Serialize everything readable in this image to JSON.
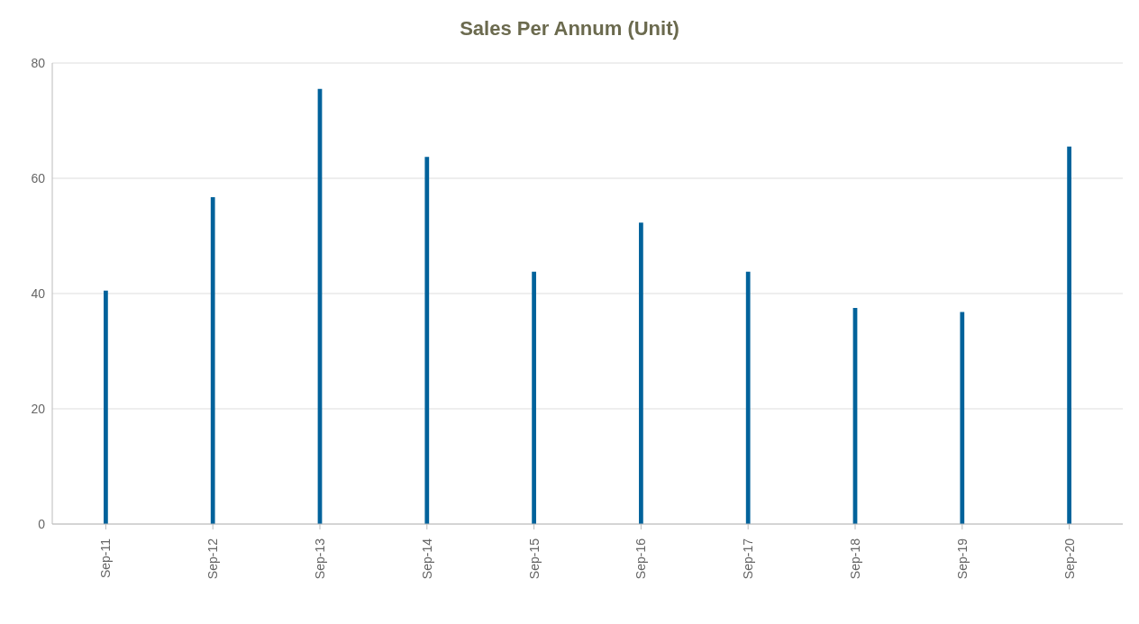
{
  "chart_data": {
    "type": "bar",
    "title": "Sales Per Annum (Unit)",
    "categories": [
      "Sep-11",
      "Sep-12",
      "Sep-13",
      "Sep-14",
      "Sep-15",
      "Sep-16",
      "Sep-17",
      "Sep-18",
      "Sep-19",
      "Sep-20"
    ],
    "values": [
      40.5,
      56.7,
      75.5,
      63.7,
      43.8,
      52.3,
      43.8,
      37.5,
      36.8,
      65.5
    ],
    "color": "#00629b",
    "ylim": [
      0,
      80
    ],
    "yticks": [
      0,
      20,
      40,
      60,
      80
    ],
    "grid": "y"
  }
}
